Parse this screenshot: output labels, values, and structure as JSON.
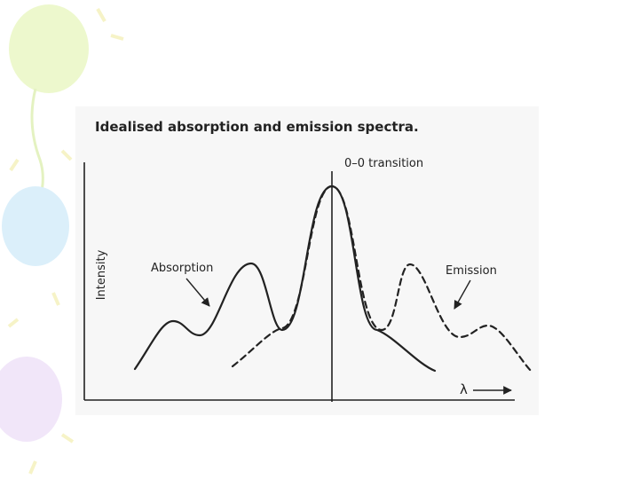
{
  "title": "Idealised absorption and emission spectra.",
  "labels": {
    "transition": "0–0 transition",
    "y_axis": "Intensity",
    "absorption": "Absorption",
    "emission": "Emission",
    "x_axis": "λ"
  }
}
